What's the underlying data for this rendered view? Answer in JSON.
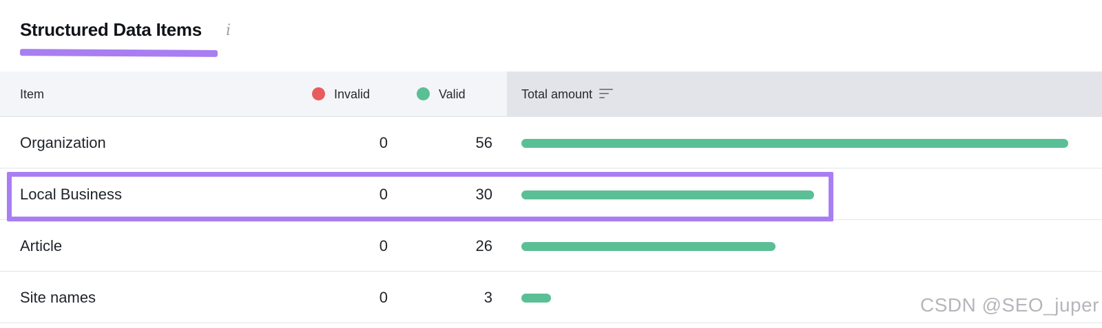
{
  "header": {
    "title": "Structured Data Items",
    "info_icon": "info-icon",
    "info_glyph": "i"
  },
  "table": {
    "columns": {
      "item": "Item",
      "invalid": "Invalid",
      "valid": "Valid",
      "total": "Total amount"
    },
    "sort_icon": "sort-icon",
    "rows": [
      {
        "name": "Organization",
        "invalid": "0",
        "valid": "56",
        "total": 56
      },
      {
        "name": "Local Business",
        "invalid": "0",
        "valid": "30",
        "total": 30,
        "highlighted": true
      },
      {
        "name": "Article",
        "invalid": "0",
        "valid": "26",
        "total": 26
      },
      {
        "name": "Site names",
        "invalid": "0",
        "valid": "3",
        "total": 3
      }
    ],
    "max_total": 56
  },
  "colors": {
    "invalid": "#e85c5c",
    "valid": "#5bbf95",
    "highlight": "#a87ef2",
    "underline": "#a87ef2"
  },
  "watermark": "CSDN @SEO_juper"
}
